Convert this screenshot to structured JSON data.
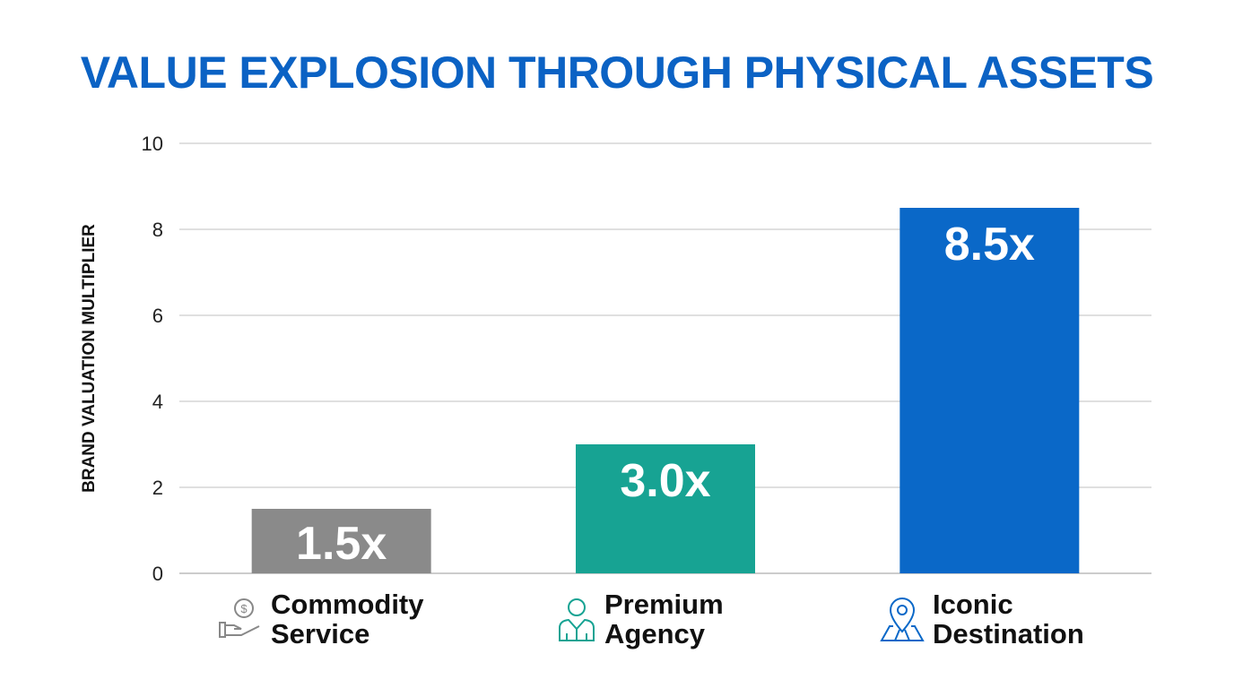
{
  "chart_data": {
    "type": "bar",
    "title": "VALUE EXPLOSION THROUGH PHYSICAL ASSETS",
    "ylabel": "BRAND VALUATION MULTIPLIER",
    "xlabel": "",
    "ylim": [
      0,
      10
    ],
    "yticks": [
      0,
      2,
      4,
      6,
      8,
      10
    ],
    "grid": true,
    "categories": [
      {
        "line1": "Commodity",
        "line2": "Service",
        "icon": "hand-dollar-icon"
      },
      {
        "line1": "Premium",
        "line2": "Agency",
        "icon": "person-suit-icon"
      },
      {
        "line1": "Iconic",
        "line2": "Destination",
        "icon": "map-pin-icon"
      }
    ],
    "values": [
      1.5,
      3.0,
      8.5
    ],
    "data_labels": [
      "1.5x",
      "3.0x",
      "8.5x"
    ],
    "colors": [
      "#8a8a8a",
      "#17a393",
      "#0a68c8"
    ]
  }
}
